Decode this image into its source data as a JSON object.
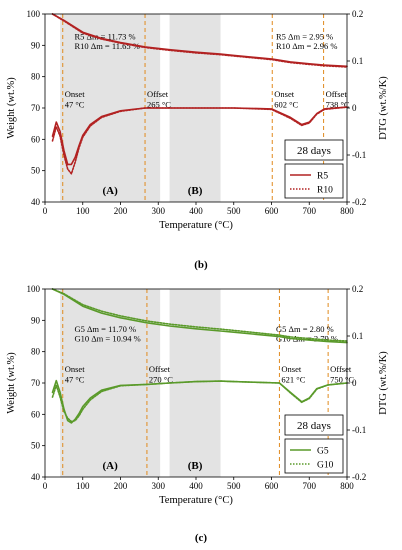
{
  "charts": [
    {
      "panel_label": "(b)",
      "days_label": "28 days",
      "primary_color": "#b22222",
      "xlabel": "Temperature (°C)",
      "ylabel_left": "Weight (wt.%)",
      "ylabel_right": "DTG (wt.%/K)",
      "xlim": [
        0,
        800
      ],
      "ylim_left": [
        40,
        100
      ],
      "ylim_right": [
        -0.2,
        0.2
      ],
      "xticks": [
        0,
        100,
        200,
        300,
        400,
        500,
        600,
        700,
        800
      ],
      "yticks_left": [
        40,
        50,
        60,
        70,
        80,
        90,
        100
      ],
      "yticks_right": [
        -0.2,
        -0.1,
        0,
        0.1,
        0.2
      ],
      "shaded_regions": [
        {
          "range": [
            40,
            305
          ],
          "label": "(A)"
        },
        {
          "range": [
            330,
            465
          ],
          "label": "(B)"
        }
      ],
      "vlines": [
        {
          "x": 47,
          "label": "Onset",
          "value_text": "47 °C"
        },
        {
          "x": 265,
          "label": "Offset",
          "value_text": "265 °C"
        },
        {
          "x": 602,
          "label": "Onset",
          "value_text": "602 °C"
        },
        {
          "x": 738,
          "label": "Offset",
          "value_text": "738 °C"
        }
      ],
      "mass_loss_annotations": [
        {
          "text": "R5 Δm = 11.73 %",
          "x": 78,
          "y": 91.8
        },
        {
          "text": "R10 Δm = 11.65 %",
          "x": 78,
          "y": 88.8
        },
        {
          "text": "R5 Δm = 2.95 %",
          "x": 612,
          "y": 91.8
        },
        {
          "text": "R10 Δm = 2.96 %",
          "x": 612,
          "y": 88.8
        }
      ],
      "legend": [
        {
          "name": "R5",
          "style": "solid"
        },
        {
          "name": "R10",
          "style": "dotted"
        }
      ],
      "series": [
        {
          "name": "R5",
          "axis": "left",
          "kind": "weight",
          "x": [
            20,
            50,
            100,
            150,
            200,
            265,
            330,
            400,
            465,
            500,
            602,
            650,
            700,
            738,
            800
          ],
          "y": [
            100,
            98,
            94.2,
            92.2,
            90.9,
            89.5,
            88.6,
            87.8,
            87.2,
            86.8,
            85.6,
            84.7,
            84.1,
            83.7,
            83.3
          ]
        },
        {
          "name": "R10",
          "axis": "left",
          "kind": "weight",
          "x": [
            20,
            50,
            100,
            150,
            200,
            265,
            330,
            400,
            465,
            500,
            602,
            650,
            700,
            738,
            800
          ],
          "y": [
            100,
            97.8,
            93.9,
            92,
            90.7,
            89.3,
            88.4,
            87.6,
            87,
            86.6,
            85.4,
            84.5,
            83.9,
            83.5,
            83.1
          ]
        },
        {
          "name": "R5",
          "axis": "right",
          "kind": "dtg",
          "x": [
            20,
            30,
            40,
            50,
            60,
            70,
            80,
            90,
            100,
            120,
            150,
            200,
            265,
            330,
            400,
            465,
            500,
            600,
            650,
            680,
            700,
            720,
            740,
            800
          ],
          "y": [
            -0.06,
            -0.03,
            -0.05,
            -0.09,
            -0.12,
            -0.12,
            -0.105,
            -0.08,
            -0.058,
            -0.035,
            -0.018,
            -0.006,
            0,
            0,
            0,
            0,
            0,
            -0.002,
            -0.02,
            -0.035,
            -0.03,
            -0.012,
            -0.002,
            0.002
          ]
        },
        {
          "name": "R10",
          "axis": "right",
          "kind": "dtg",
          "x": [
            20,
            30,
            40,
            50,
            60,
            70,
            80,
            90,
            100,
            120,
            150,
            200,
            265,
            330,
            400,
            465,
            500,
            600,
            650,
            680,
            700,
            720,
            740,
            800
          ],
          "y": [
            -0.07,
            -0.04,
            -0.06,
            -0.1,
            -0.13,
            -0.14,
            -0.115,
            -0.085,
            -0.062,
            -0.038,
            -0.02,
            -0.007,
            0,
            0,
            0,
            0,
            0,
            -0.003,
            -0.022,
            -0.037,
            -0.032,
            -0.013,
            -0.003,
            0.002
          ]
        }
      ]
    },
    {
      "panel_label": "(c)",
      "days_label": "28 days",
      "primary_color": "#5a9a2a",
      "xlabel": "Temperature (°C)",
      "ylabel_left": "Weight (wt.%)",
      "ylabel_right": "DTG (wt.%/K)",
      "xlim": [
        0,
        800
      ],
      "ylim_left": [
        40,
        100
      ],
      "ylim_right": [
        -0.2,
        0.2
      ],
      "xticks": [
        0,
        100,
        200,
        300,
        400,
        500,
        600,
        700,
        800
      ],
      "yticks_left": [
        40,
        50,
        60,
        70,
        80,
        90,
        100
      ],
      "yticks_right": [
        -0.2,
        -0.1,
        0,
        0.1,
        0.2
      ],
      "shaded_regions": [
        {
          "range": [
            40,
            305
          ],
          "label": "(A)"
        },
        {
          "range": [
            330,
            465
          ],
          "label": "(B)"
        }
      ],
      "vlines": [
        {
          "x": 47,
          "label": "Onset",
          "value_text": "47 °C"
        },
        {
          "x": 270,
          "label": "Offset",
          "value_text": "270 °C"
        },
        {
          "x": 621,
          "label": "Onset",
          "value_text": "621 °C"
        },
        {
          "x": 750,
          "label": "Offset",
          "value_text": "750 °C"
        }
      ],
      "mass_loss_annotations": [
        {
          "text": "G5 Δm = 11.70 %",
          "x": 78,
          "y": 86.2
        },
        {
          "text": "G10 Δm = 10.94 %",
          "x": 78,
          "y": 83.2
        },
        {
          "text": "G5 Δm = 2.80 %",
          "x": 612,
          "y": 86.2
        },
        {
          "text": "G10 Δm = 2.79 %",
          "x": 612,
          "y": 83.2
        }
      ],
      "legend": [
        {
          "name": "G5",
          "style": "solid"
        },
        {
          "name": "G10",
          "style": "dotted"
        }
      ],
      "series": [
        {
          "name": "G5",
          "axis": "left",
          "kind": "weight",
          "x": [
            20,
            50,
            100,
            150,
            200,
            270,
            330,
            400,
            465,
            500,
            621,
            650,
            700,
            750,
            800
          ],
          "y": [
            100,
            98.3,
            94.5,
            92.3,
            90.8,
            89.2,
            88.2,
            87.3,
            86.6,
            86.2,
            84.8,
            84.2,
            83.7,
            83.2,
            82.9
          ]
        },
        {
          "name": "G10",
          "axis": "left",
          "kind": "weight",
          "x": [
            20,
            50,
            100,
            150,
            200,
            270,
            330,
            400,
            465,
            500,
            621,
            650,
            700,
            750,
            800
          ],
          "y": [
            100,
            98.5,
            95,
            92.9,
            91.4,
            89.8,
            88.8,
            87.9,
            87.2,
            86.8,
            85.3,
            84.7,
            84.2,
            83.7,
            83.4
          ]
        },
        {
          "name": "G5",
          "axis": "right",
          "kind": "dtg",
          "x": [
            20,
            30,
            40,
            50,
            60,
            70,
            80,
            90,
            100,
            120,
            150,
            200,
            270,
            330,
            400,
            465,
            500,
            621,
            650,
            680,
            700,
            720,
            750,
            800
          ],
          "y": [
            -0.02,
            0.005,
            -0.02,
            -0.055,
            -0.08,
            -0.085,
            -0.077,
            -0.065,
            -0.05,
            -0.032,
            -0.015,
            -0.005,
            -0.003,
            0,
            0.003,
            0.004,
            0.003,
            0,
            -0.02,
            -0.04,
            -0.032,
            -0.012,
            -0.004,
            0
          ]
        },
        {
          "name": "G10",
          "axis": "right",
          "kind": "dtg",
          "x": [
            20,
            30,
            40,
            50,
            60,
            70,
            80,
            90,
            100,
            120,
            150,
            200,
            270,
            330,
            400,
            465,
            500,
            621,
            650,
            680,
            700,
            720,
            750,
            800
          ],
          "y": [
            -0.03,
            -0.005,
            -0.03,
            -0.06,
            -0.075,
            -0.082,
            -0.08,
            -0.07,
            -0.056,
            -0.036,
            -0.018,
            -0.006,
            -0.003,
            0,
            0.003,
            0.004,
            0.003,
            0,
            -0.021,
            -0.041,
            -0.033,
            -0.013,
            -0.004,
            0
          ]
        }
      ]
    }
  ]
}
